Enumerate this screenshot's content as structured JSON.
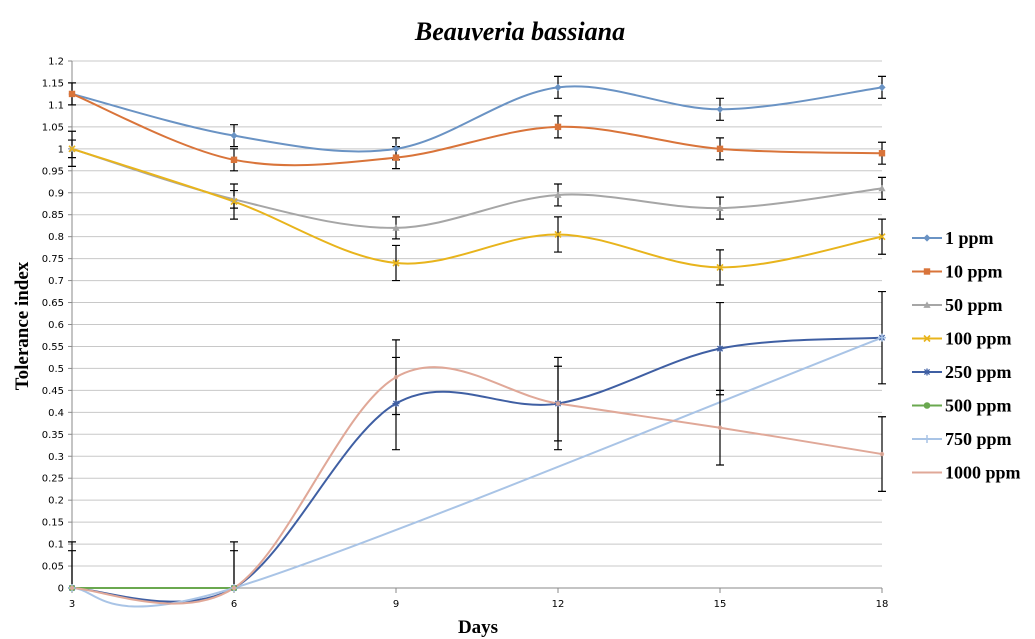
{
  "chart_data": {
    "type": "line",
    "title": "Beauveria bassiana",
    "xlabel": "Days",
    "ylabel": "Tolerance index",
    "x": [
      3,
      6,
      9,
      12,
      15,
      18
    ],
    "x_ticks": [
      "3",
      "6",
      "9",
      "12",
      "15",
      "18"
    ],
    "ylim": [
      0,
      1.2
    ],
    "y_ticks": [
      "0",
      "0.05",
      "0.1",
      "0.15",
      "0.2",
      "0.25",
      "0.3",
      "0.35",
      "0.4",
      "0.45",
      "0.5",
      "0.55",
      "0.6",
      "0.65",
      "0.7",
      "0.75",
      "0.8",
      "0.85",
      "0.9",
      "0.95",
      "1",
      "1.05",
      "1.1",
      "1.15",
      "1.2"
    ],
    "grid": true,
    "legend_position": "right",
    "smooth": true,
    "series": [
      {
        "name": "1 ppm",
        "color": "#6a93c4",
        "marker": "diamond",
        "values": [
          1.125,
          1.03,
          1.0,
          1.14,
          1.09,
          1.14
        ],
        "errors": [
          0.025,
          0.025,
          0.025,
          0.025,
          0.025,
          0.025
        ]
      },
      {
        "name": "10 ppm",
        "color": "#d9743a",
        "marker": "square",
        "values": [
          1.125,
          0.975,
          0.98,
          1.05,
          1.0,
          0.99
        ],
        "errors": [
          0.025,
          0.025,
          0.025,
          0.025,
          0.025,
          0.025
        ]
      },
      {
        "name": "50 ppm",
        "color": "#a6a6a6",
        "marker": "triangle",
        "values": [
          1.0,
          0.885,
          0.82,
          0.895,
          0.865,
          0.91
        ],
        "errors": [
          0.02,
          0.02,
          0.025,
          0.025,
          0.025,
          0.025
        ]
      },
      {
        "name": "100 ppm",
        "color": "#e8b41c",
        "marker": "x",
        "values": [
          1.0,
          0.88,
          0.74,
          0.805,
          0.73,
          0.8
        ],
        "errors": [
          0.04,
          0.04,
          0.04,
          0.04,
          0.04,
          0.04
        ]
      },
      {
        "name": "250 ppm",
        "color": "#3f5fa3",
        "marker": "star",
        "values": [
          0,
          0,
          0.42,
          0.42,
          0.545,
          0.57
        ],
        "errors": [
          0.105,
          0.105,
          0.105,
          0.105,
          0.105,
          0.105
        ]
      },
      {
        "name": "500 ppm",
        "color": "#6aa84f",
        "marker": "circle",
        "values": [
          0,
          0,
          null,
          null,
          null,
          null
        ],
        "errors": [
          0,
          0,
          0,
          0,
          0,
          0
        ]
      },
      {
        "name": "750 ppm",
        "color": "#a9c4e6",
        "marker": "plus",
        "values": [
          0,
          0,
          null,
          null,
          null,
          0.57
        ],
        "errors": [
          0,
          0,
          0,
          0,
          0,
          0
        ]
      },
      {
        "name": "1000 ppm",
        "color": "#e0a898",
        "marker": "none",
        "values": [
          0,
          0,
          0.48,
          0.42,
          0.365,
          0.305
        ],
        "errors": [
          0.085,
          0.085,
          0.085,
          0.085,
          0.085,
          0.085
        ]
      }
    ]
  }
}
